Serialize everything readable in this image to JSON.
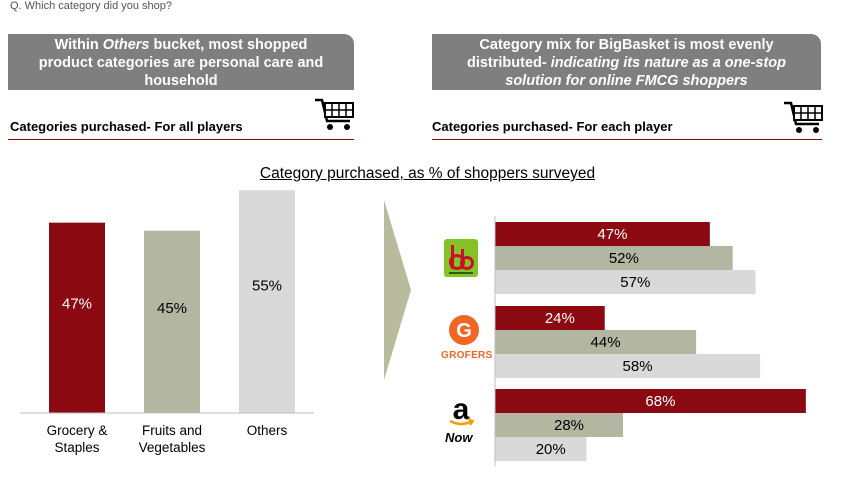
{
  "question": "Q. Which category did you shop?",
  "left_banner": {
    "line1_pre": "Within ",
    "line1_em": "Others",
    "line1_post": " bucket, most shopped",
    "line2": "product categories are personal care and",
    "line3": "household"
  },
  "right_banner": {
    "line1": "Category mix for BigBasket is most evenly",
    "line2_pre": "distributed- ",
    "line2_em": "indicating its nature as a one-stop",
    "line3_em": "solution for online FMCG shoppers"
  },
  "left_section_title": "Categories purchased- For all players",
  "right_section_title": "Categories purchased- For each player",
  "chart_title": "Category purchased, as % of shoppers surveyed",
  "colors": {
    "grocery": "#8b0a12",
    "fruits": "#b3b6a0",
    "others": "#d9d9d9",
    "banner": "#7f7f7f",
    "rule": "#8b0000"
  },
  "logos": {
    "grofers_text": "GROFERS",
    "amazon_text": "Now"
  },
  "chart_data": [
    {
      "type": "bar",
      "categories": [
        "Grocery & Staples",
        "Fruits and Vegetables",
        "Others"
      ],
      "category_lines": [
        [
          "Grocery &",
          "Staples"
        ],
        [
          "Fruits and",
          "Vegetables"
        ],
        [
          "Others"
        ]
      ],
      "values": [
        47,
        45,
        55
      ],
      "labels": [
        "47%",
        "45%",
        "55%"
      ],
      "ylim": [
        0,
        60
      ]
    },
    {
      "type": "bar",
      "orientation": "horizontal",
      "groups": [
        "BigBasket",
        "Grofers",
        "Amazon Now"
      ],
      "series": [
        {
          "values": [
            47,
            24,
            68
          ],
          "labels": [
            "47%",
            "24%",
            "68%"
          ]
        },
        {
          "values": [
            52,
            44,
            28
          ],
          "labels": [
            "52%",
            "44%",
            "28%"
          ]
        },
        {
          "values": [
            57,
            58,
            20
          ],
          "labels": [
            "57%",
            "58%",
            "20%"
          ]
        }
      ],
      "xlim": [
        0,
        70
      ]
    }
  ]
}
